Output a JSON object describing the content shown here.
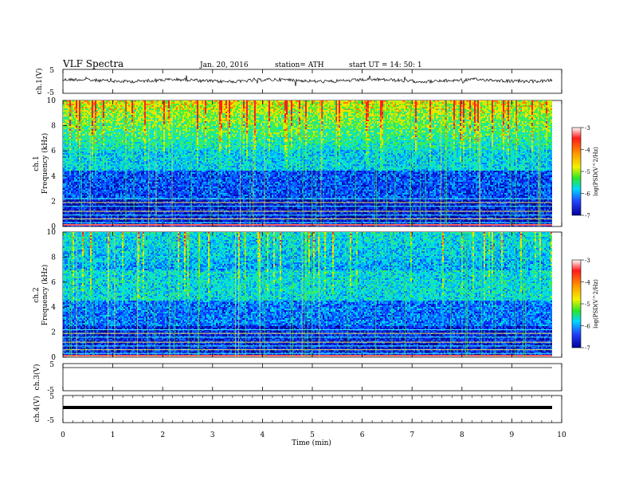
{
  "header": {
    "title": "VLF  Spectra",
    "date": "Jan. 20, 2016",
    "station": "station= ATH",
    "start": "start  UT  =    14: 50: 1"
  },
  "colorbar": {
    "label": "log(PSD(V^2/Hz)",
    "ticks": [
      "-3",
      "-4",
      "-5",
      "-6",
      "-7"
    ],
    "colors": [
      "#ff1a1a",
      "#ff9a00",
      "#f2f200",
      "#29e629",
      "#00d9ff",
      "#2244ff",
      "#000099"
    ]
  },
  "chart_data": {
    "type": "heatmap",
    "xlabel": "Time  (min)",
    "x_ticks": [
      "0",
      "1",
      "2",
      "3",
      "4",
      "5",
      "6",
      "7",
      "8",
      "9",
      "10"
    ],
    "xlim": [
      0,
      10
    ],
    "panels": [
      {
        "id": "ch1v",
        "ylabel": "ch.1(V)",
        "ylim": [
          -5,
          5
        ],
        "y_ticks": [
          "5",
          "-5"
        ],
        "kind": "waveform"
      },
      {
        "id": "ch1",
        "ylabel_top": "ch.1",
        "ylabel": "Frequency  (kHz)",
        "ylim": [
          0,
          10
        ],
        "y_ticks": [
          "0",
          "2",
          "4",
          "6",
          "8",
          "10"
        ],
        "kind": "spectrogram",
        "z_range": [
          -7,
          -3
        ]
      },
      {
        "id": "ch2",
        "ylabel_top": "ch.2",
        "ylabel": "Frequency  (kHz)",
        "ylim": [
          0,
          10
        ],
        "y_ticks": [
          "0",
          "2",
          "4",
          "6",
          "8",
          "10"
        ],
        "kind": "spectrogram",
        "z_range": [
          -7,
          -3
        ]
      },
      {
        "id": "ch3v",
        "ylabel": "ch.3(V)",
        "ylim": [
          -5,
          5
        ],
        "y_ticks": [
          "5",
          "-5"
        ],
        "kind": "waveform"
      },
      {
        "id": "ch4v",
        "ylabel": "ch.4(V)",
        "ylim": [
          -5,
          5
        ],
        "y_ticks": [
          "5",
          "-5"
        ],
        "kind": "waveform"
      }
    ]
  }
}
